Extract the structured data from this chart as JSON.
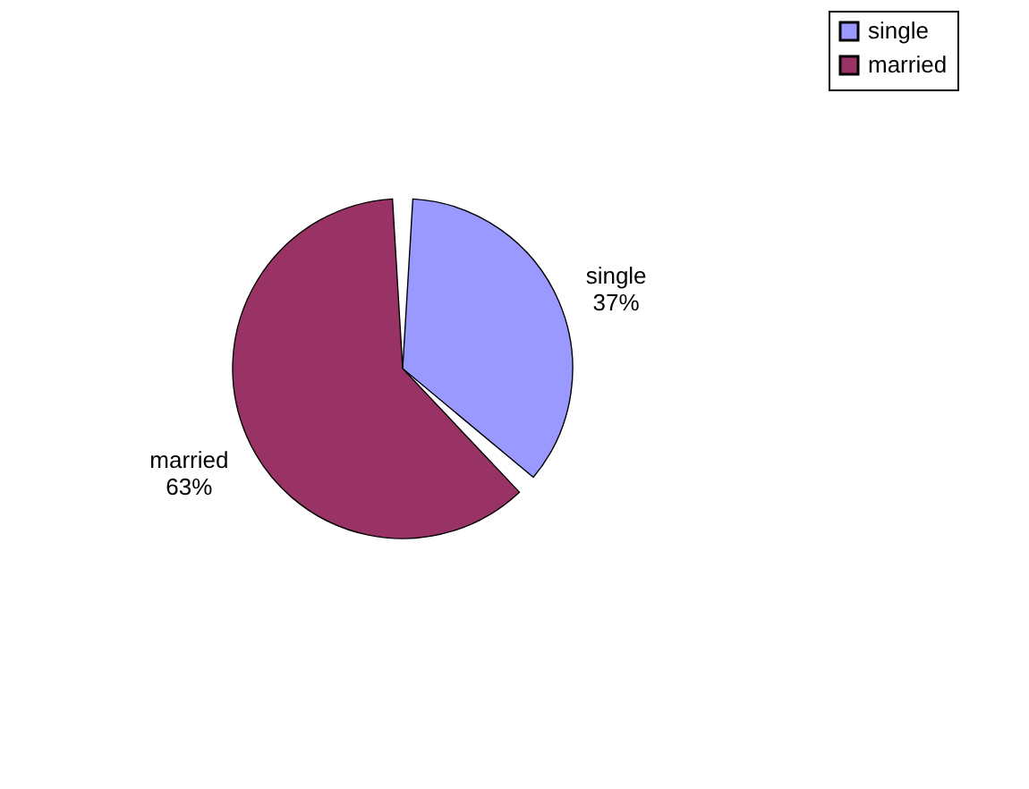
{
  "chart_data": {
    "type": "pie",
    "categories": [
      "single",
      "married"
    ],
    "values": [
      37,
      63
    ],
    "value_labels": [
      "37%",
      "63%"
    ],
    "colors": [
      "#9999ff",
      "#993366"
    ],
    "legend": "right"
  }
}
